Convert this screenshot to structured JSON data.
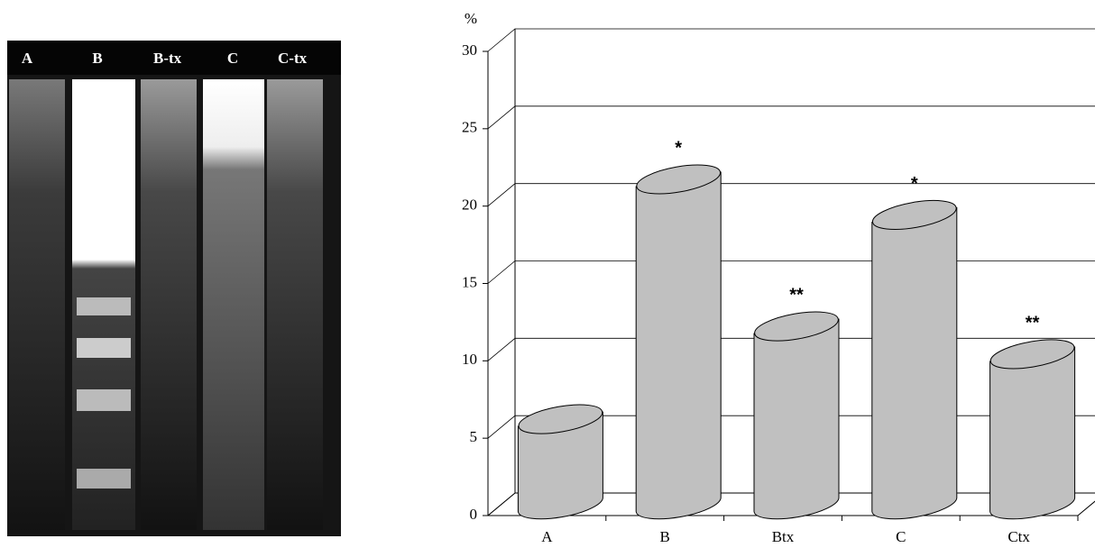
{
  "gel": {
    "lanes": [
      "A",
      "B",
      "B-tx",
      "C",
      "C-tx"
    ]
  },
  "chart_data": {
    "type": "bar",
    "y_label": "%",
    "categories": [
      "A",
      "B",
      "Btx",
      "C",
      "Ctx"
    ],
    "values": [
      5.5,
      21,
      11.5,
      18.7,
      9.7
    ],
    "color": "#c0c0c0",
    "ylim": [
      0,
      30
    ],
    "yticks": [
      0,
      5,
      10,
      15,
      20,
      25,
      30
    ],
    "grid": true,
    "annotations": [
      {
        "category": "B",
        "label": "*"
      },
      {
        "category": "Btx",
        "label": "**"
      },
      {
        "category": "C",
        "label": "*"
      },
      {
        "category": "Ctx",
        "label": "**"
      }
    ]
  }
}
